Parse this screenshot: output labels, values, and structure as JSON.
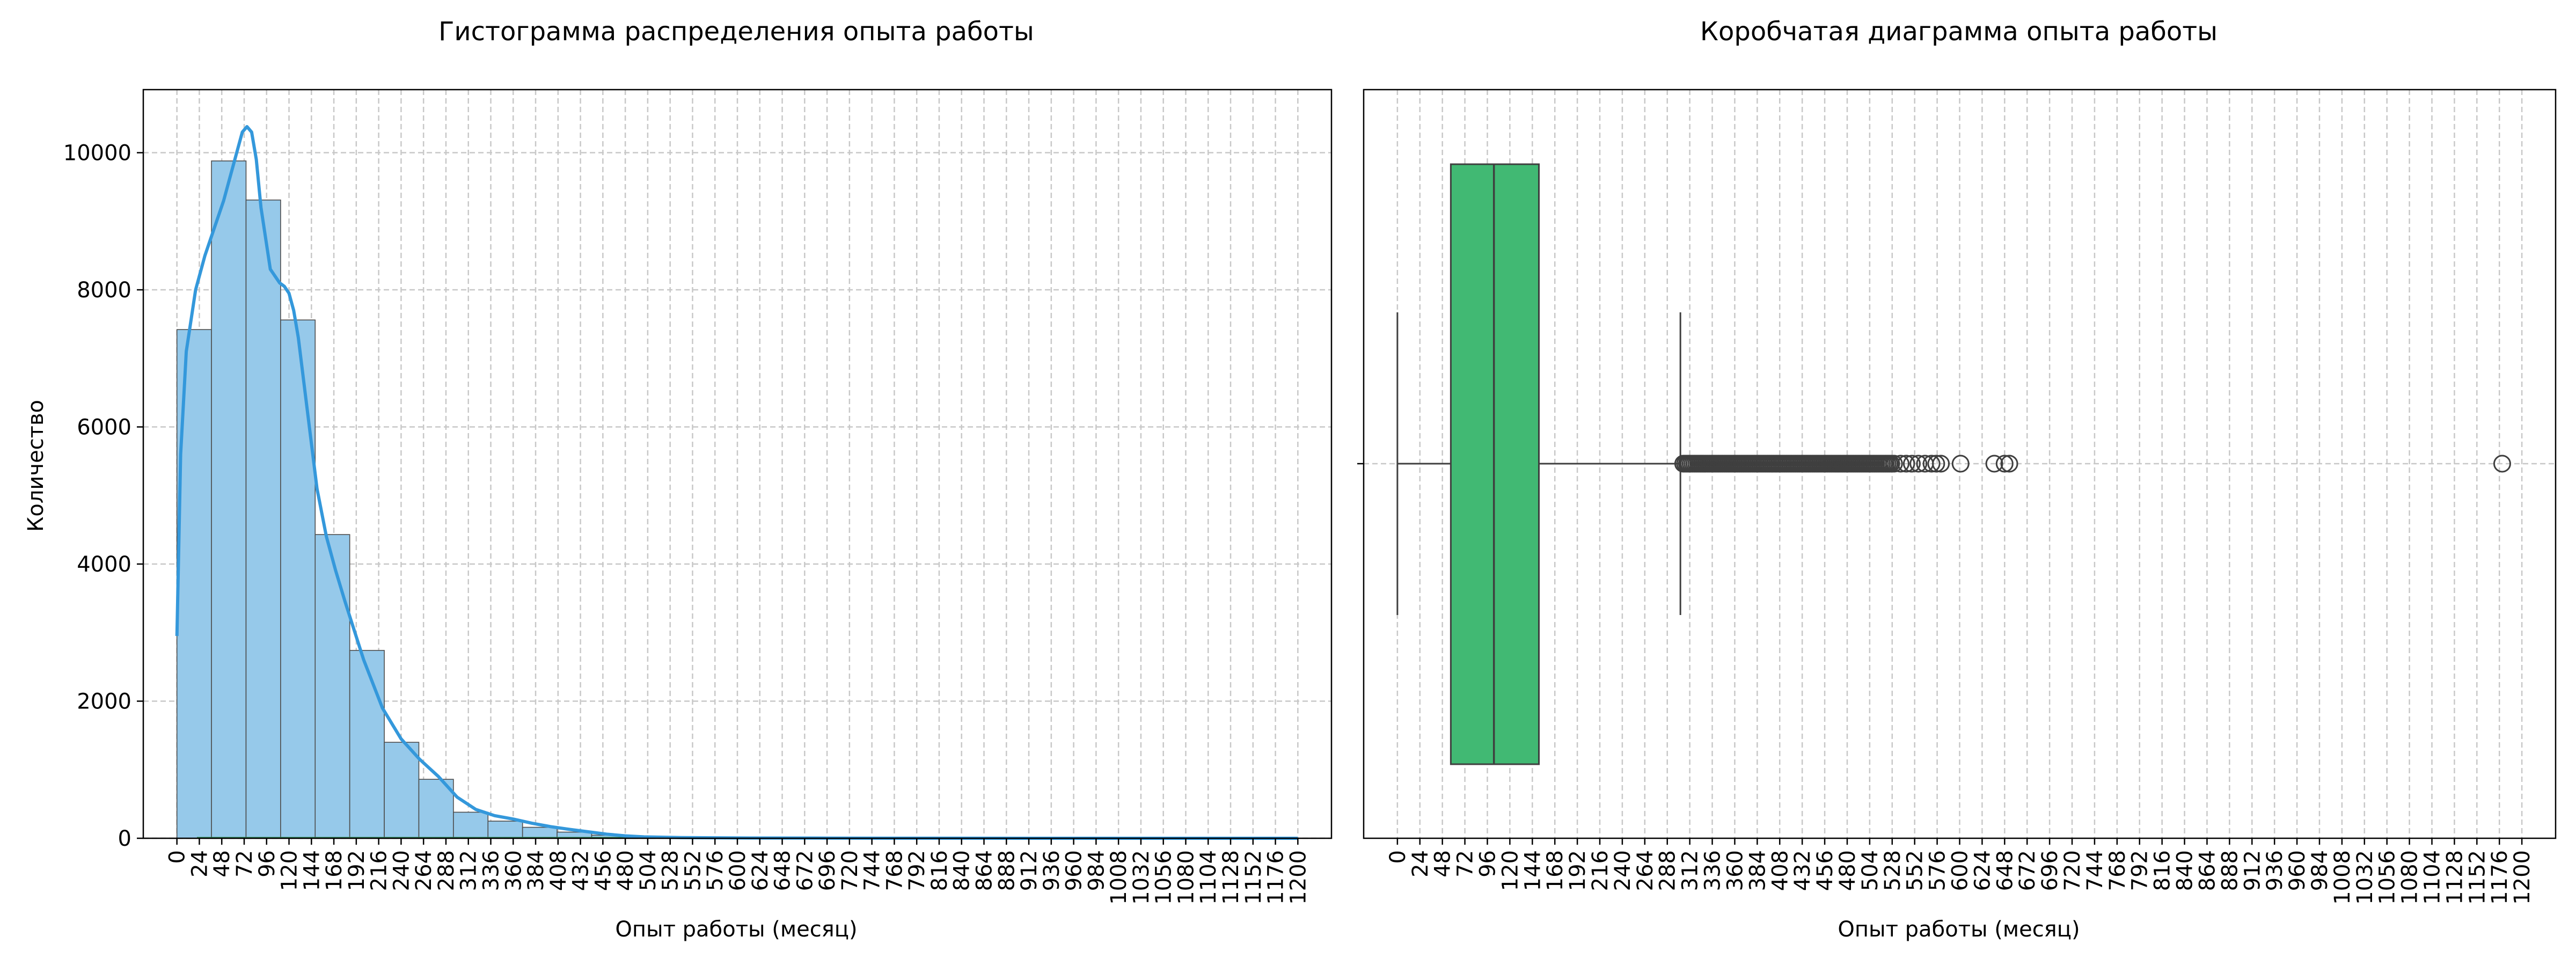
{
  "chart_data": [
    {
      "type": "bar",
      "title": "Гистограмма распределения опыта работы",
      "xlabel": "Опыт работы (месяц)",
      "ylabel": "Количество",
      "xlim": [
        -36,
        1236
      ],
      "ylim": [
        0,
        10920
      ],
      "grid": true,
      "x_ticks": [
        0,
        24,
        48,
        72,
        96,
        120,
        144,
        168,
        192,
        216,
        240,
        264,
        288,
        312,
        336,
        360,
        384,
        408,
        432,
        456,
        480,
        504,
        528,
        552,
        576,
        600,
        624,
        648,
        672,
        696,
        720,
        744,
        768,
        792,
        816,
        840,
        864,
        888,
        912,
        936,
        960,
        984,
        1008,
        1032,
        1056,
        1080,
        1104,
        1128,
        1152,
        1176,
        1200
      ],
      "y_ticks": [
        0,
        2000,
        4000,
        6000,
        8000,
        10000
      ],
      "bin_width": 37,
      "bins": [
        {
          "start": 0,
          "count": 7420
        },
        {
          "start": 37,
          "count": 9880
        },
        {
          "start": 74,
          "count": 9310
        },
        {
          "start": 111,
          "count": 7560
        },
        {
          "start": 148,
          "count": 4430
        },
        {
          "start": 185,
          "count": 2740
        },
        {
          "start": 222,
          "count": 1400
        },
        {
          "start": 259,
          "count": 860
        },
        {
          "start": 296,
          "count": 380
        },
        {
          "start": 333,
          "count": 250
        },
        {
          "start": 370,
          "count": 160
        },
        {
          "start": 407,
          "count": 90
        },
        {
          "start": 444,
          "count": 45
        },
        {
          "start": 481,
          "count": 20
        },
        {
          "start": 518,
          "count": 10
        },
        {
          "start": 555,
          "count": 6
        },
        {
          "start": 592,
          "count": 4
        },
        {
          "start": 629,
          "count": 3
        },
        {
          "start": 666,
          "count": 2
        }
      ],
      "kde": {
        "x": [
          0,
          4,
          10,
          20,
          30,
          40,
          50,
          60,
          70,
          75,
          80,
          85,
          90,
          100,
          110,
          115,
          120,
          125,
          130,
          140,
          150,
          160,
          170,
          180,
          200,
          220,
          240,
          260,
          280,
          300,
          320,
          340,
          360,
          380,
          400,
          420,
          440,
          460,
          480,
          500,
          540,
          600,
          700,
          800,
          1000,
          1200
        ],
        "y": [
          2950,
          5600,
          7100,
          8000,
          8500,
          8900,
          9300,
          9800,
          10300,
          10380,
          10300,
          9900,
          9200,
          8300,
          8100,
          8050,
          7950,
          7700,
          7300,
          6200,
          5100,
          4400,
          3900,
          3450,
          2600,
          1900,
          1450,
          1150,
          900,
          600,
          420,
          330,
          280,
          220,
          170,
          130,
          95,
          60,
          35,
          20,
          10,
          5,
          2,
          1,
          0,
          0
        ]
      },
      "colors": {
        "bar": "#96c9ea",
        "bar_edge": "#4d4d4d",
        "kde": "#3498db",
        "baseline": "#2e8b57"
      }
    },
    {
      "type": "box",
      "title": "Коробчатая диаграмма опыта работы",
      "xlabel": "Опыт работы (месяц)",
      "xlim": [
        -36,
        1236
      ],
      "grid": true,
      "x_ticks": [
        0,
        24,
        48,
        72,
        96,
        120,
        144,
        168,
        192,
        216,
        240,
        264,
        288,
        312,
        336,
        360,
        384,
        408,
        432,
        456,
        480,
        504,
        528,
        552,
        576,
        600,
        624,
        648,
        672,
        696,
        720,
        744,
        768,
        792,
        816,
        840,
        864,
        888,
        912,
        936,
        960,
        984,
        1008,
        1032,
        1056,
        1080,
        1104,
        1128,
        1152,
        1176,
        1200
      ],
      "whisker_low": 0,
      "q1": 57,
      "median": 103,
      "q3": 151,
      "whisker_high": 302,
      "outliers": [
        305,
        307,
        309,
        311,
        313,
        315,
        317,
        319,
        321,
        323,
        325,
        327,
        329,
        331,
        333,
        335,
        337,
        339,
        341,
        343,
        345,
        347,
        349,
        351,
        353,
        355,
        357,
        359,
        361,
        363,
        365,
        367,
        369,
        371,
        373,
        375,
        377,
        379,
        381,
        383,
        385,
        387,
        389,
        391,
        393,
        395,
        397,
        399,
        401,
        403,
        405,
        407,
        409,
        411,
        413,
        415,
        417,
        419,
        421,
        423,
        425,
        427,
        429,
        431,
        433,
        435,
        437,
        439,
        441,
        443,
        445,
        447,
        449,
        451,
        453,
        455,
        457,
        459,
        461,
        463,
        465,
        467,
        469,
        471,
        473,
        475,
        477,
        479,
        481,
        483,
        485,
        487,
        489,
        491,
        493,
        495,
        497,
        499,
        501,
        503,
        505,
        507,
        509,
        511,
        513,
        515,
        517,
        519,
        521,
        523,
        525,
        527,
        530,
        537,
        543,
        549,
        556,
        563,
        570,
        575,
        580,
        601,
        637,
        648,
        653,
        1179
      ],
      "colors": {
        "box": "#41b973",
        "line": "#3f3f3f"
      }
    }
  ]
}
